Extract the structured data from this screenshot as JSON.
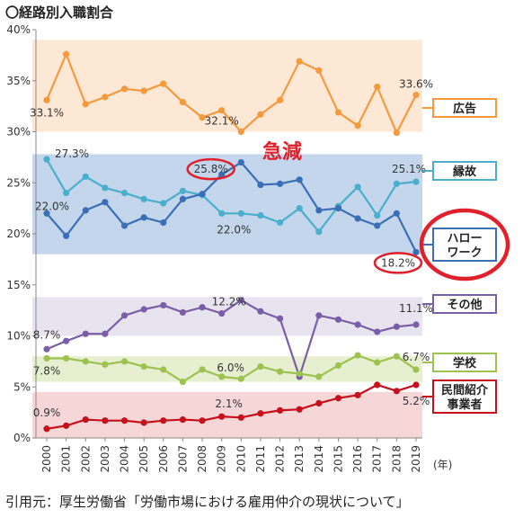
{
  "title": "〇経路別入職割合",
  "citation": "引用元：厚生労働省「労働市場における雇用仲介の現状について」",
  "annotation": "急減",
  "x_unit": "(年)",
  "colors": {
    "広告": "#f5993d",
    "縁故": "#4aaecc",
    "ハローワーク": "#3b6fb5",
    "その他": "#7b5ea8",
    "学校": "#9cc24f",
    "民間紹介事業者": "#c4111c",
    "highlight": "#e0202a"
  },
  "chart_data": {
    "type": "line",
    "x": [
      "2000",
      "2001",
      "2002",
      "2003",
      "2004",
      "2005",
      "2006",
      "2007",
      "2008",
      "2009",
      "2010",
      "2011",
      "2012",
      "2013",
      "2014",
      "2015",
      "2016",
      "2017",
      "2018",
      "2019"
    ],
    "ylim": [
      0,
      40
    ],
    "y_ticks": [
      "0%",
      "5%",
      "10%",
      "15%",
      "20%",
      "25%",
      "30%",
      "35%",
      "40%"
    ],
    "series": [
      {
        "name": "広告",
        "values": [
          33.1,
          37.6,
          32.7,
          33.4,
          34.2,
          34.0,
          34.7,
          32.9,
          31.4,
          32.1,
          30.0,
          31.7,
          33.1,
          36.9,
          36.0,
          31.9,
          30.6,
          34.4,
          29.9,
          33.6
        ]
      },
      {
        "name": "縁故",
        "values": [
          27.3,
          24.0,
          25.6,
          24.5,
          24.0,
          23.4,
          23.0,
          24.2,
          23.8,
          22.0,
          22.0,
          21.8,
          21.1,
          22.5,
          20.2,
          22.7,
          24.6,
          21.8,
          24.9,
          25.1
        ]
      },
      {
        "name": "ハローワーク",
        "values": [
          22.0,
          19.8,
          22.3,
          23.1,
          20.8,
          21.6,
          21.1,
          23.4,
          23.9,
          25.8,
          27.0,
          24.8,
          24.9,
          25.3,
          22.3,
          22.5,
          21.5,
          20.8,
          22.0,
          18.2
        ]
      },
      {
        "name": "その他",
        "values": [
          8.7,
          9.5,
          10.2,
          10.2,
          12.0,
          12.6,
          13.0,
          12.3,
          12.8,
          12.2,
          13.5,
          12.4,
          11.7,
          6.0,
          12.0,
          11.6,
          11.1,
          10.4,
          10.9,
          11.1
        ]
      },
      {
        "name": "学校",
        "values": [
          7.8,
          7.8,
          7.5,
          7.2,
          7.5,
          7.0,
          6.7,
          5.5,
          6.7,
          6.0,
          5.8,
          7.0,
          6.5,
          6.3,
          6.0,
          7.1,
          8.1,
          7.4,
          8.0,
          6.7
        ]
      },
      {
        "name": "民間紹介事業者",
        "values": [
          0.9,
          1.2,
          1.8,
          1.7,
          1.7,
          1.5,
          1.7,
          1.8,
          1.7,
          2.1,
          2.0,
          2.4,
          2.7,
          2.8,
          3.4,
          3.9,
          4.2,
          5.2,
          4.6,
          5.2
        ]
      }
    ],
    "point_labels": [
      {
        "series": "広告",
        "x": "2000",
        "text": "33.1%"
      },
      {
        "series": "広告",
        "x": "2009",
        "text": "32.1%"
      },
      {
        "series": "広告",
        "x": "2019",
        "text": "33.6%"
      },
      {
        "series": "縁故",
        "x": "2000",
        "text": "27.3%"
      },
      {
        "series": "縁故",
        "x": "2019",
        "text": "25.1%"
      },
      {
        "series": "ハローワーク",
        "x": "2000",
        "text": "22.0%"
      },
      {
        "series": "縁故",
        "x": "2010",
        "text": "22.0%"
      },
      {
        "series": "ハローワーク",
        "x": "2009",
        "text": "25.8%"
      },
      {
        "series": "ハローワーク",
        "x": "2019",
        "text": "18.2%"
      },
      {
        "series": "その他",
        "x": "2000",
        "text": "8.7%"
      },
      {
        "series": "その他",
        "x": "2009",
        "text": "12.2%"
      },
      {
        "series": "その他",
        "x": "2019",
        "text": "11.1%"
      },
      {
        "series": "学校",
        "x": "2000",
        "text": "7.8%"
      },
      {
        "series": "学校",
        "x": "2009",
        "text": "6.0%"
      },
      {
        "series": "学校",
        "x": "2019",
        "text": "6.7%"
      },
      {
        "series": "民間紹介事業者",
        "x": "2000",
        "text": "0.9%"
      },
      {
        "series": "民間紹介事業者",
        "x": "2009",
        "text": "2.1%"
      },
      {
        "series": "民間紹介事業者",
        "x": "2019",
        "text": "5.2%"
      }
    ],
    "bands": [
      {
        "series": "広告",
        "range": [
          30,
          39
        ],
        "color": "#fde8d6"
      },
      {
        "series": "縁故",
        "range": [
          18,
          27.8
        ],
        "color": "#c3d6ec"
      },
      {
        "series": "その他",
        "range": [
          10,
          13.8
        ],
        "color": "#e8e4ef"
      },
      {
        "series": "学校",
        "range": [
          5.5,
          8
        ],
        "color": "#e6efcf"
      },
      {
        "series": "民間紹介事業者",
        "range": [
          0,
          4.5
        ],
        "color": "#f6d6d6"
      }
    ],
    "legend": [
      {
        "label": "広告",
        "lines": [
          "広告"
        ]
      },
      {
        "label": "縁故",
        "lines": [
          "縁故"
        ]
      },
      {
        "label": "ハローワーク",
        "lines": [
          "ハロー",
          "ワーク"
        ]
      },
      {
        "label": "その他",
        "lines": [
          "その他"
        ]
      },
      {
        "label": "学校",
        "lines": [
          "学校"
        ]
      },
      {
        "label": "民間紹介事業者",
        "lines": [
          "民間紹介",
          "事業者"
        ]
      }
    ],
    "legend_placement": "right",
    "grid": false
  }
}
